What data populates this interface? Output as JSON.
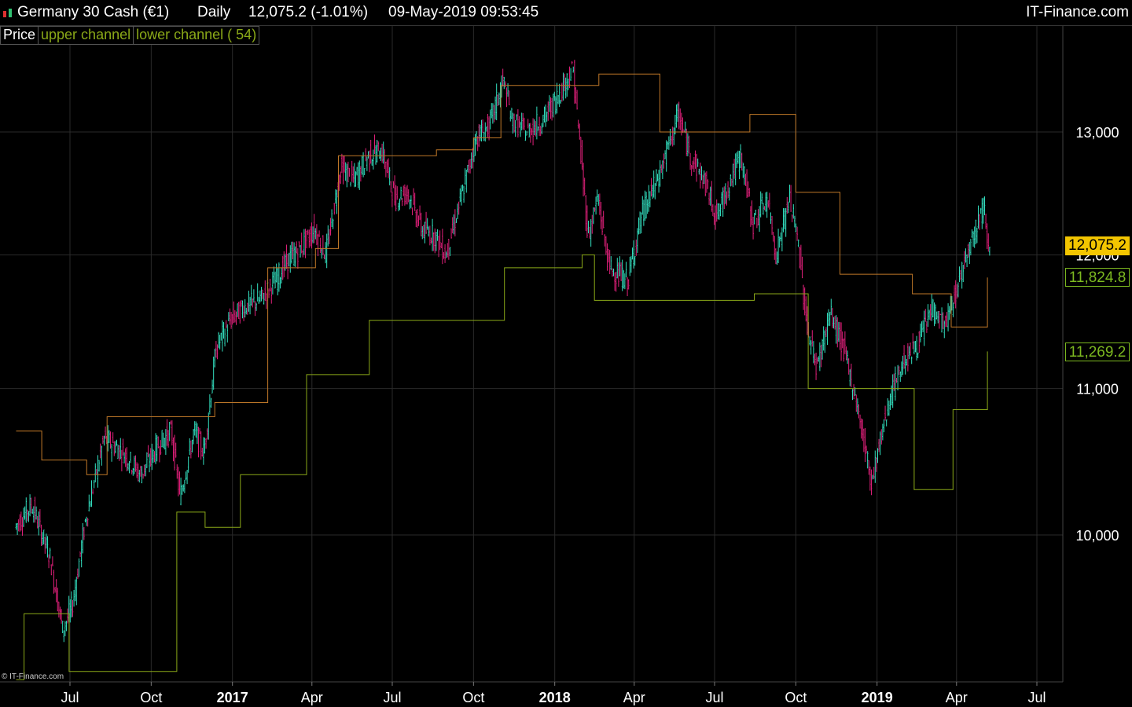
{
  "header": {
    "instrument": "Germany 30 Cash (€1)",
    "period": "Daily",
    "quote": "12,075.2 (-1.01%)",
    "datetime": "09-May-2019 09:53:45",
    "brand": "IT-Finance.com"
  },
  "legend": {
    "price": "Price",
    "upper": "upper channel",
    "lower": "lower channel ( 54)"
  },
  "copyright": "© IT-Finance.com",
  "tags": {
    "price": "12,075.2",
    "upper": "11,824.8",
    "lower": "11,269.2"
  },
  "colors": {
    "up": "#33e0c0",
    "down": "#e0207a",
    "upper_channel": "#c07828",
    "lower_channel": "#8aa818",
    "price_tag": "#f2c500",
    "grid": "#2a2a2a",
    "tag_green": "#7cb820"
  },
  "chart_data": {
    "type": "line",
    "title": "Germany 30 Cash (€1) Daily",
    "y_scale": "log",
    "y_ticks": [
      {
        "value": 10000,
        "label": "10,000"
      },
      {
        "value": 11000,
        "label": "11,000"
      },
      {
        "value": 12000,
        "label": "12,000"
      },
      {
        "value": 13000,
        "label": "13,000"
      }
    ],
    "x_range": [
      "2016-05-01",
      "2019-07-31"
    ],
    "x_ticks": [
      {
        "date": "2016-07-01",
        "label": "Jul",
        "bold": false
      },
      {
        "date": "2016-10-01",
        "label": "Oct",
        "bold": false
      },
      {
        "date": "2017-01-01",
        "label": "2017",
        "bold": true
      },
      {
        "date": "2017-04-01",
        "label": "Apr",
        "bold": false
      },
      {
        "date": "2017-07-01",
        "label": "Jul",
        "bold": false
      },
      {
        "date": "2017-10-01",
        "label": "Oct",
        "bold": false
      },
      {
        "date": "2018-01-01",
        "label": "2018",
        "bold": true
      },
      {
        "date": "2018-04-01",
        "label": "Apr",
        "bold": false
      },
      {
        "date": "2018-07-01",
        "label": "Jul",
        "bold": false
      },
      {
        "date": "2018-10-01",
        "label": "Oct",
        "bold": false
      },
      {
        "date": "2019-01-01",
        "label": "2019",
        "bold": true
      },
      {
        "date": "2019-04-01",
        "label": "Apr",
        "bold": false
      },
      {
        "date": "2019-07-01",
        "label": "Jul",
        "bold": false
      }
    ],
    "series": [
      {
        "name": "Price",
        "points": [
          [
            "2016-05-01",
            10050
          ],
          [
            "2016-05-20",
            10200
          ],
          [
            "2016-06-10",
            9850
          ],
          [
            "2016-06-24",
            9400
          ],
          [
            "2016-07-05",
            9550
          ],
          [
            "2016-07-20",
            10100
          ],
          [
            "2016-08-10",
            10650
          ],
          [
            "2016-09-01",
            10550
          ],
          [
            "2016-09-20",
            10400
          ],
          [
            "2016-10-10",
            10600
          ],
          [
            "2016-10-25",
            10700
          ],
          [
            "2016-11-04",
            10250
          ],
          [
            "2016-11-20",
            10700
          ],
          [
            "2016-12-01",
            10550
          ],
          [
            "2016-12-15",
            11300
          ],
          [
            "2016-12-31",
            11500
          ],
          [
            "2017-01-15",
            11600
          ],
          [
            "2017-02-01",
            11650
          ],
          [
            "2017-02-20",
            11800
          ],
          [
            "2017-03-05",
            11950
          ],
          [
            "2017-03-20",
            12050
          ],
          [
            "2017-04-05",
            12200
          ],
          [
            "2017-04-18",
            12000
          ],
          [
            "2017-05-05",
            12700
          ],
          [
            "2017-05-20",
            12600
          ],
          [
            "2017-06-05",
            12800
          ],
          [
            "2017-06-20",
            12850
          ],
          [
            "2017-07-05",
            12450
          ],
          [
            "2017-07-20",
            12500
          ],
          [
            "2017-08-05",
            12200
          ],
          [
            "2017-08-20",
            12150
          ],
          [
            "2017-09-01",
            12000
          ],
          [
            "2017-09-20",
            12500
          ],
          [
            "2017-10-05",
            12950
          ],
          [
            "2017-10-20",
            13050
          ],
          [
            "2017-11-05",
            13450
          ],
          [
            "2017-11-15",
            13100
          ],
          [
            "2017-12-01",
            13000
          ],
          [
            "2017-12-20",
            13100
          ],
          [
            "2018-01-05",
            13300
          ],
          [
            "2018-01-23",
            13550
          ],
          [
            "2018-02-09",
            12150
          ],
          [
            "2018-02-20",
            12450
          ],
          [
            "2018-03-05",
            11900
          ],
          [
            "2018-03-26",
            11800
          ],
          [
            "2018-04-10",
            12300
          ],
          [
            "2018-05-01",
            12650
          ],
          [
            "2018-05-22",
            13150
          ],
          [
            "2018-06-05",
            12800
          ],
          [
            "2018-06-20",
            12600
          ],
          [
            "2018-07-05",
            12300
          ],
          [
            "2018-07-20",
            12600
          ],
          [
            "2018-08-01",
            12800
          ],
          [
            "2018-08-15",
            12250
          ],
          [
            "2018-08-31",
            12450
          ],
          [
            "2018-09-10",
            12000
          ],
          [
            "2018-09-25",
            12450
          ],
          [
            "2018-10-05",
            12100
          ],
          [
            "2018-10-15",
            11450
          ],
          [
            "2018-10-26",
            11150
          ],
          [
            "2018-11-10",
            11550
          ],
          [
            "2018-11-25",
            11300
          ],
          [
            "2018-12-10",
            10900
          ],
          [
            "2018-12-27",
            10350
          ],
          [
            "2019-01-15",
            10900
          ],
          [
            "2019-02-01",
            11200
          ],
          [
            "2019-02-20",
            11350
          ],
          [
            "2019-03-05",
            11600
          ],
          [
            "2019-03-20",
            11450
          ],
          [
            "2019-04-01",
            11700
          ],
          [
            "2019-04-15",
            12050
          ],
          [
            "2019-05-03",
            12400
          ],
          [
            "2019-05-09",
            12075
          ]
        ]
      },
      {
        "name": "upper channel",
        "points": [
          [
            "2016-05-01",
            10700
          ],
          [
            "2016-05-30",
            10700
          ],
          [
            "2016-05-30",
            10500
          ],
          [
            "2016-07-20",
            10500
          ],
          [
            "2016-07-20",
            10400
          ],
          [
            "2016-08-12",
            10400
          ],
          [
            "2016-08-12",
            10800
          ],
          [
            "2016-12-12",
            10800
          ],
          [
            "2016-12-12",
            10900
          ],
          [
            "2017-02-10",
            10900
          ],
          [
            "2017-02-10",
            11900
          ],
          [
            "2017-04-05",
            11900
          ],
          [
            "2017-04-05",
            12050
          ],
          [
            "2017-05-01",
            12050
          ],
          [
            "2017-05-01",
            12800
          ],
          [
            "2017-08-20",
            12800
          ],
          [
            "2017-08-20",
            12850
          ],
          [
            "2017-10-01",
            12850
          ],
          [
            "2017-10-01",
            12950
          ],
          [
            "2017-11-01",
            12950
          ],
          [
            "2017-11-01",
            13400
          ],
          [
            "2018-02-20",
            13400
          ],
          [
            "2018-02-20",
            13500
          ],
          [
            "2018-04-30",
            13500
          ],
          [
            "2018-04-30",
            13000
          ],
          [
            "2018-08-10",
            13000
          ],
          [
            "2018-08-10",
            13150
          ],
          [
            "2018-10-01",
            13150
          ],
          [
            "2018-10-01",
            12500
          ],
          [
            "2018-11-20",
            12500
          ],
          [
            "2018-11-20",
            11850
          ],
          [
            "2019-02-10",
            11850
          ],
          [
            "2019-02-10",
            11700
          ],
          [
            "2019-03-26",
            11700
          ],
          [
            "2019-03-26",
            11450
          ],
          [
            "2019-05-06",
            11450
          ],
          [
            "2019-05-06",
            11824.8
          ]
        ]
      },
      {
        "name": "lower channel",
        "points": [
          [
            "2016-05-01",
            9100
          ],
          [
            "2016-05-10",
            9100
          ],
          [
            "2016-05-10",
            9500
          ],
          [
            "2016-06-30",
            9500
          ],
          [
            "2016-06-30",
            9150
          ],
          [
            "2016-10-30",
            9150
          ],
          [
            "2016-10-30",
            10150
          ],
          [
            "2016-12-01",
            10150
          ],
          [
            "2016-12-01",
            10050
          ],
          [
            "2017-01-10",
            10050
          ],
          [
            "2017-01-10",
            10400
          ],
          [
            "2017-03-26",
            10400
          ],
          [
            "2017-03-26",
            11100
          ],
          [
            "2017-06-05",
            11100
          ],
          [
            "2017-06-05",
            11500
          ],
          [
            "2017-11-05",
            11500
          ],
          [
            "2017-11-05",
            11900
          ],
          [
            "2018-02-01",
            11900
          ],
          [
            "2018-02-01",
            12000
          ],
          [
            "2018-02-15",
            12000
          ],
          [
            "2018-02-15",
            11650
          ],
          [
            "2018-08-15",
            11650
          ],
          [
            "2018-08-15",
            11700
          ],
          [
            "2018-10-15",
            11700
          ],
          [
            "2018-10-15",
            11000
          ],
          [
            "2019-02-12",
            11000
          ],
          [
            "2019-02-12",
            10300
          ],
          [
            "2019-03-28",
            10300
          ],
          [
            "2019-03-28",
            10850
          ],
          [
            "2019-05-06",
            10850
          ],
          [
            "2019-05-06",
            11269.2
          ]
        ]
      }
    ]
  }
}
